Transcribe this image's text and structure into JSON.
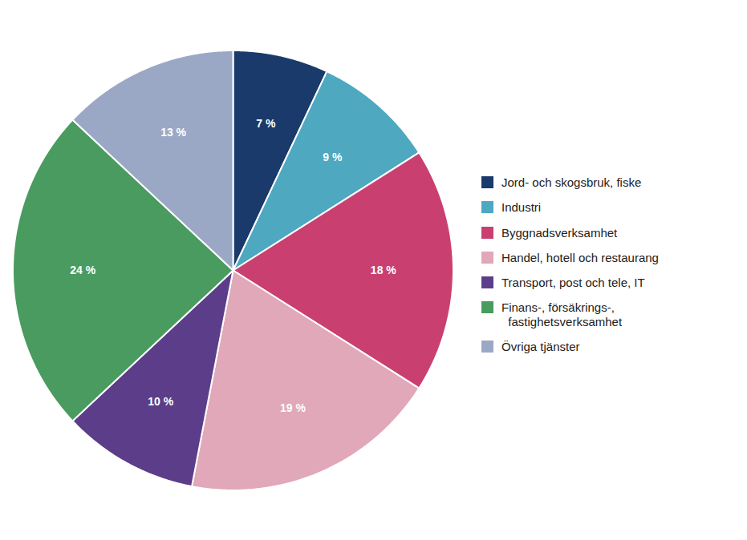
{
  "chart_data": {
    "type": "pie",
    "categories": [
      "Jord- och skogsbruk, fiske",
      "Industri",
      "Byggnadsverksamhet",
      "Handel, hotell och restaurang",
      "Transport, post och tele, IT",
      "Finans-, försäkrings-,\n  fastighetsverksamhet",
      "Övriga tjänster"
    ],
    "values": [
      7,
      9,
      18,
      19,
      10,
      24,
      13
    ],
    "value_labels": [
      "7 %",
      "9 %",
      "18 %",
      "19 %",
      "10 %",
      "24 %",
      "13 %"
    ],
    "colors": [
      "#1A3A6B",
      "#4DA8C0",
      "#C94070",
      "#E0A8B8",
      "#5C3D8A",
      "#4A9B5F",
      "#9BA8C5"
    ],
    "data_labels": true,
    "legend": "right"
  }
}
